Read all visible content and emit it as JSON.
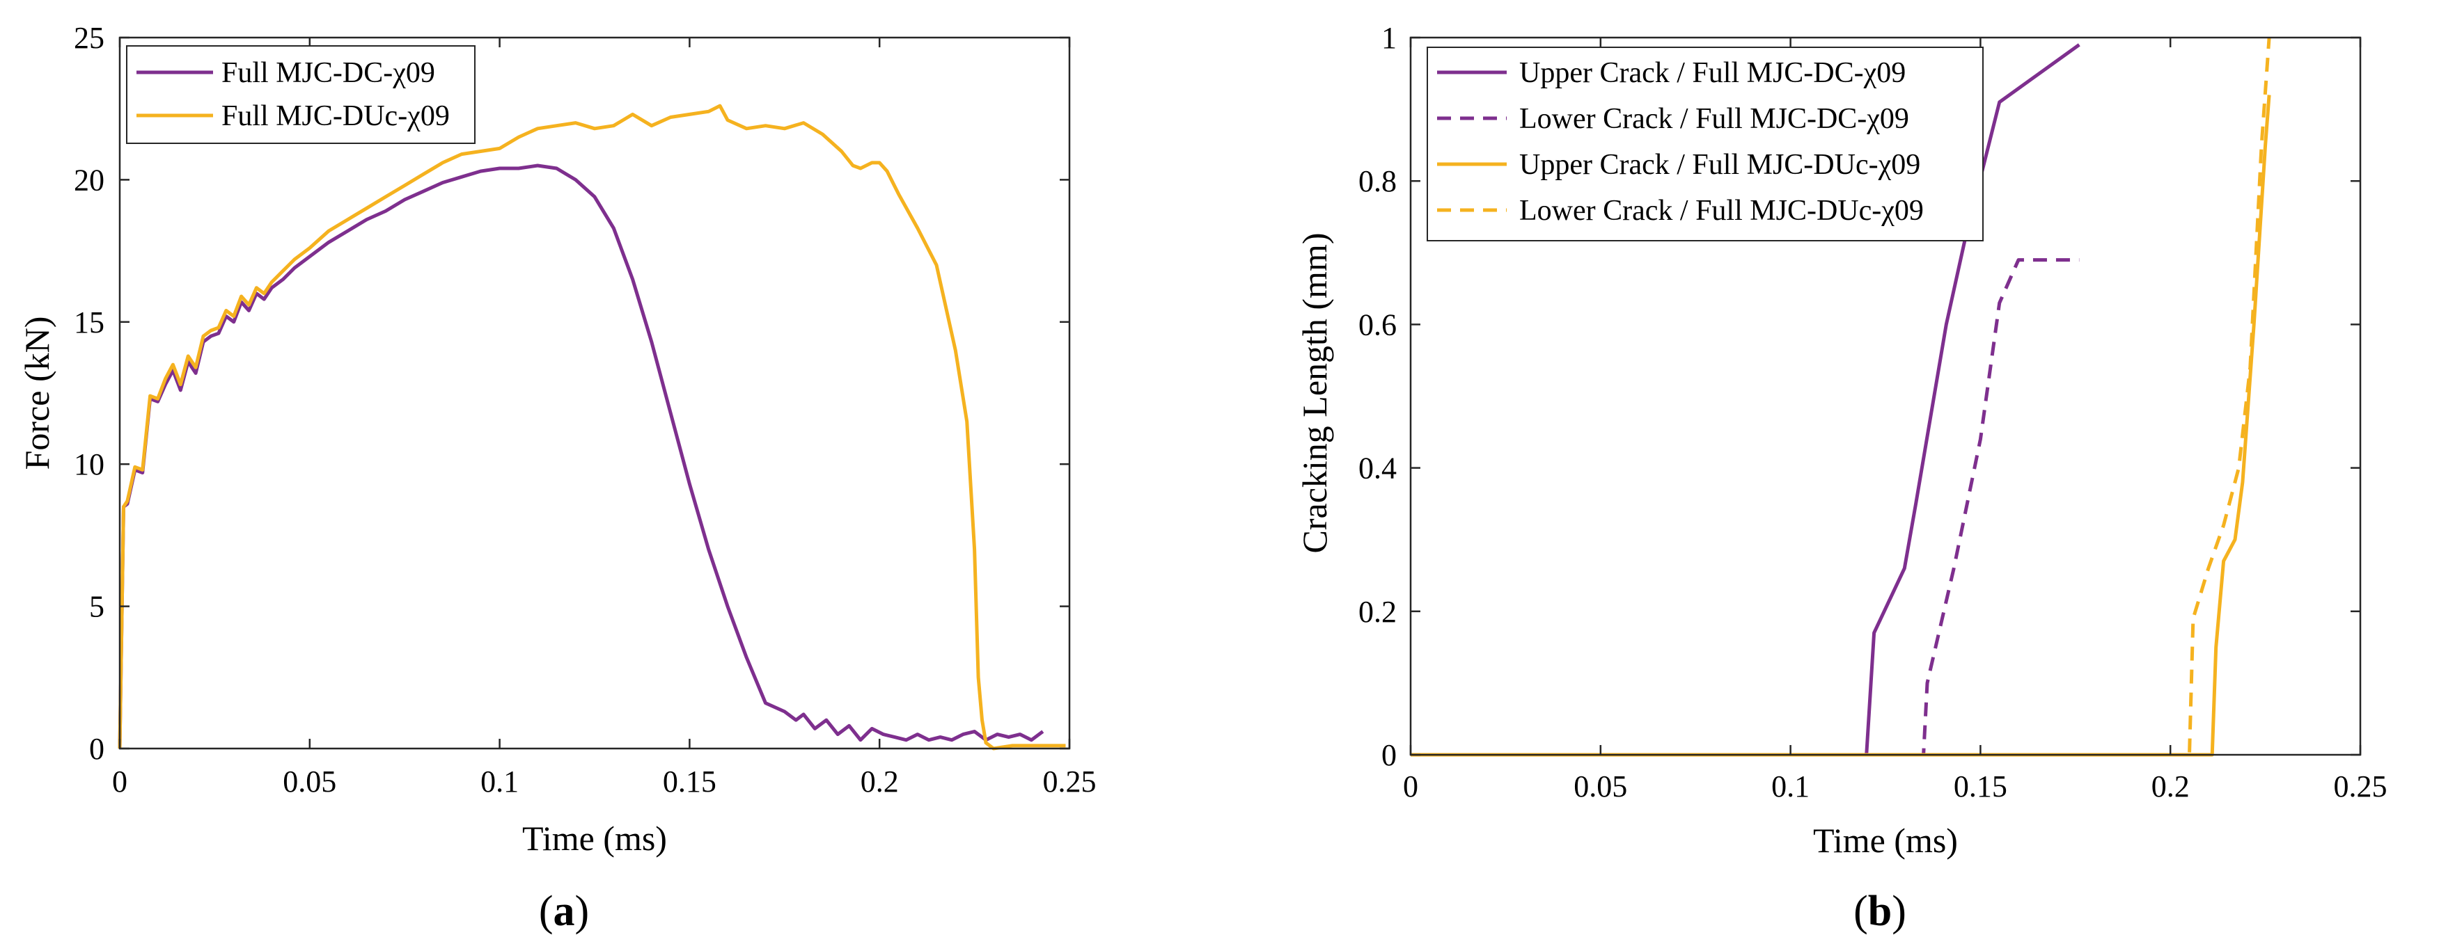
{
  "colors": {
    "purple": "#7E2F8E",
    "orange": "#F5B21F",
    "axis": "#262626"
  },
  "chart_data": [
    {
      "id": "a",
      "panel_label": "a",
      "type": "line",
      "title": "",
      "xlabel": "Time (ms)",
      "ylabel": "Force (kN)",
      "xlim": [
        0,
        0.25
      ],
      "ylim": [
        0,
        25
      ],
      "xticks": [
        0,
        0.05,
        0.1,
        0.15,
        0.2,
        0.25
      ],
      "xtick_labels": [
        "0",
        "0.05",
        "0.1",
        "0.15",
        "0.2",
        "0.25"
      ],
      "yticks": [
        0,
        5,
        10,
        15,
        20,
        25
      ],
      "ytick_labels": [
        "0",
        "5",
        "10",
        "15",
        "20",
        "25"
      ],
      "legend_position": "top-left",
      "series": [
        {
          "name": "Full MJC-DC-χ09",
          "color": "#7E2F8E",
          "dash": "solid",
          "x": [
            0,
            0.001,
            0.002,
            0.004,
            0.006,
            0.008,
            0.01,
            0.012,
            0.014,
            0.016,
            0.018,
            0.02,
            0.022,
            0.024,
            0.026,
            0.028,
            0.03,
            0.032,
            0.034,
            0.036,
            0.038,
            0.04,
            0.043,
            0.046,
            0.05,
            0.055,
            0.06,
            0.065,
            0.07,
            0.075,
            0.08,
            0.085,
            0.09,
            0.095,
            0.1,
            0.105,
            0.11,
            0.115,
            0.12,
            0.125,
            0.13,
            0.135,
            0.14,
            0.145,
            0.15,
            0.155,
            0.16,
            0.165,
            0.17,
            0.175,
            0.178,
            0.18,
            0.183,
            0.186,
            0.189,
            0.192,
            0.195,
            0.198,
            0.201,
            0.204,
            0.207,
            0.21,
            0.213,
            0.216,
            0.219,
            0.222,
            0.225,
            0.228,
            0.231,
            0.234,
            0.237,
            0.24,
            0.243
          ],
          "y": [
            0,
            8.5,
            8.6,
            9.8,
            9.7,
            12.3,
            12.2,
            12.8,
            13.3,
            12.6,
            13.6,
            13.2,
            14.3,
            14.5,
            14.6,
            15.2,
            15.0,
            15.7,
            15.4,
            16.0,
            15.8,
            16.2,
            16.5,
            16.9,
            17.3,
            17.8,
            18.2,
            18.6,
            18.9,
            19.3,
            19.6,
            19.9,
            20.1,
            20.3,
            20.4,
            20.4,
            20.5,
            20.4,
            20.0,
            19.4,
            18.3,
            16.5,
            14.3,
            11.8,
            9.3,
            7.0,
            5.0,
            3.2,
            1.6,
            1.3,
            1.0,
            1.2,
            0.7,
            1.0,
            0.5,
            0.8,
            0.3,
            0.7,
            0.5,
            0.4,
            0.3,
            0.5,
            0.3,
            0.4,
            0.3,
            0.5,
            0.6,
            0.3,
            0.5,
            0.4,
            0.5,
            0.3,
            0.6
          ]
        },
        {
          "name": "Full MJC-DUc-χ09",
          "color": "#F5B21F",
          "dash": "solid",
          "x": [
            0,
            0.001,
            0.002,
            0.004,
            0.006,
            0.008,
            0.01,
            0.012,
            0.014,
            0.016,
            0.018,
            0.02,
            0.022,
            0.024,
            0.026,
            0.028,
            0.03,
            0.032,
            0.034,
            0.036,
            0.038,
            0.04,
            0.043,
            0.046,
            0.05,
            0.055,
            0.06,
            0.065,
            0.07,
            0.075,
            0.08,
            0.085,
            0.09,
            0.095,
            0.1,
            0.105,
            0.11,
            0.115,
            0.12,
            0.125,
            0.13,
            0.135,
            0.14,
            0.145,
            0.15,
            0.155,
            0.158,
            0.16,
            0.165,
            0.17,
            0.175,
            0.18,
            0.185,
            0.19,
            0.193,
            0.195,
            0.198,
            0.2,
            0.202,
            0.205,
            0.21,
            0.215,
            0.22,
            0.223,
            0.225,
            0.226,
            0.227,
            0.228,
            0.23,
            0.235,
            0.24,
            0.245,
            0.249
          ],
          "y": [
            0,
            8.5,
            8.7,
            9.9,
            9.8,
            12.4,
            12.3,
            13.0,
            13.5,
            12.8,
            13.8,
            13.4,
            14.5,
            14.7,
            14.8,
            15.4,
            15.2,
            15.9,
            15.6,
            16.2,
            16.0,
            16.4,
            16.8,
            17.2,
            17.6,
            18.2,
            18.6,
            19.0,
            19.4,
            19.8,
            20.2,
            20.6,
            20.9,
            21.0,
            21.1,
            21.5,
            21.8,
            21.9,
            22.0,
            21.8,
            21.9,
            22.3,
            21.9,
            22.2,
            22.3,
            22.4,
            22.6,
            22.1,
            21.8,
            21.9,
            21.8,
            22.0,
            21.6,
            21.0,
            20.5,
            20.4,
            20.6,
            20.6,
            20.3,
            19.5,
            18.3,
            17.0,
            14.0,
            11.5,
            7.0,
            2.5,
            1.0,
            0.2,
            0.0,
            0.1,
            0.1,
            0.1,
            0.1
          ]
        }
      ]
    },
    {
      "id": "b",
      "panel_label": "b",
      "type": "line",
      "title": "",
      "xlabel": "Time (ms)",
      "ylabel": "Cracking Length (mm)",
      "xlim": [
        0,
        0.25
      ],
      "ylim": [
        0,
        1
      ],
      "xticks": [
        0,
        0.05,
        0.1,
        0.15,
        0.2,
        0.25
      ],
      "xtick_labels": [
        "0",
        "0.05",
        "0.1",
        "0.15",
        "0.2",
        "0.25"
      ],
      "yticks": [
        0,
        0.2,
        0.4,
        0.6,
        0.8,
        1
      ],
      "ytick_labels": [
        "0",
        "0.2",
        "0.4",
        "0.6",
        "0.8",
        "1"
      ],
      "legend_position": "top-left",
      "series": [
        {
          "name": "Upper Crack / Full MJC-DC-χ09",
          "color": "#7E2F8E",
          "dash": "solid",
          "x": [
            0,
            0.12,
            0.122,
            0.13,
            0.133,
            0.141,
            0.146,
            0.155,
            0.176
          ],
          "y": [
            0,
            0,
            0.17,
            0.26,
            0.35,
            0.6,
            0.72,
            0.91,
            0.99
          ]
        },
        {
          "name": "Lower Crack / Full MJC-DC-χ09",
          "color": "#7E2F8E",
          "dash": "dashed",
          "x": [
            0,
            0.135,
            0.136,
            0.143,
            0.15,
            0.155,
            0.16,
            0.176
          ],
          "y": [
            0,
            0,
            0.1,
            0.26,
            0.44,
            0.63,
            0.69,
            0.69
          ]
        },
        {
          "name": "Upper Crack / Full MJC-DUc-χ09",
          "color": "#F5B21F",
          "dash": "solid",
          "x": [
            0,
            0.211,
            0.212,
            0.214,
            0.217,
            0.219,
            0.222,
            0.225,
            0.226
          ],
          "y": [
            0,
            0,
            0.15,
            0.27,
            0.3,
            0.38,
            0.6,
            0.85,
            0.92
          ]
        },
        {
          "name": "Lower Crack / Full MJC-DUc-χ09",
          "color": "#F5B21F",
          "dash": "dashed",
          "x": [
            0,
            0.205,
            0.206,
            0.21,
            0.214,
            0.218,
            0.221,
            0.224,
            0.226
          ],
          "y": [
            0,
            0,
            0.19,
            0.26,
            0.32,
            0.4,
            0.54,
            0.85,
            1.0
          ]
        }
      ]
    }
  ]
}
